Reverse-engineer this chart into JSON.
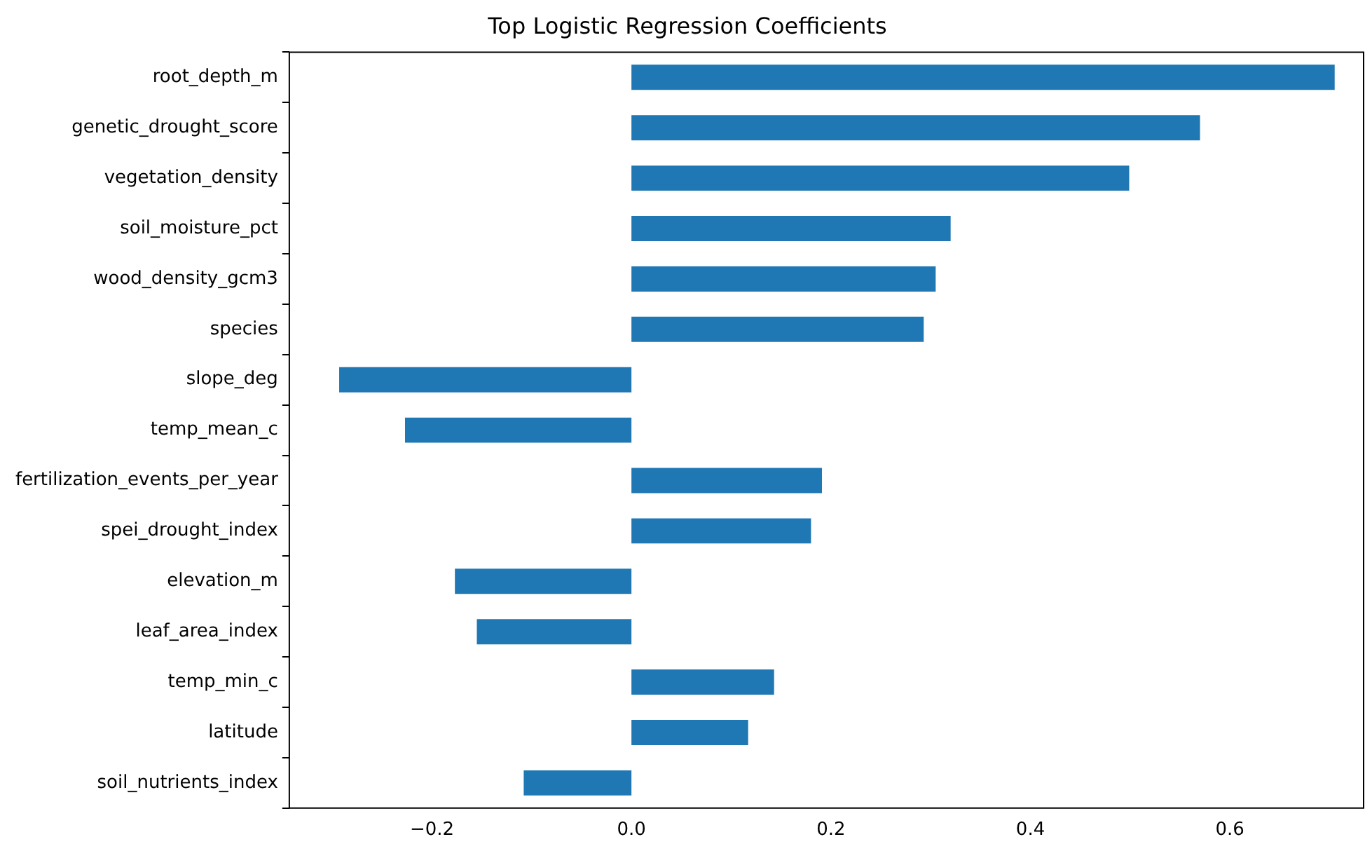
{
  "chart_data": {
    "type": "bar",
    "orientation": "horizontal",
    "title": "Top Logistic Regression Coefficients",
    "categories": [
      "root_depth_m",
      "genetic_drought_score",
      "vegetation_density",
      "soil_moisture_pct",
      "wood_density_gcm3",
      "species",
      "slope_deg",
      "temp_mean_c",
      "fertilization_events_per_year",
      "spei_drought_index",
      "elevation_m",
      "leaf_area_index",
      "temp_min_c",
      "latitude",
      "soil_nutrients_index"
    ],
    "values": [
      0.705,
      0.57,
      0.499,
      0.32,
      0.305,
      0.293,
      -0.293,
      -0.227,
      0.191,
      0.18,
      -0.177,
      -0.155,
      0.143,
      0.117,
      -0.108
    ],
    "color": "#1f77b4",
    "xlim": [
      -0.343,
      0.734
    ],
    "xticks": [
      {
        "value": -0.2,
        "label": "−0.2"
      },
      {
        "value": 0,
        "label": "0.0"
      },
      {
        "value": 0.2,
        "label": "0.2"
      },
      {
        "value": 0.4,
        "label": "0.4"
      },
      {
        "value": 0.6,
        "label": "0.6"
      }
    ],
    "grid": false,
    "legend": false
  }
}
